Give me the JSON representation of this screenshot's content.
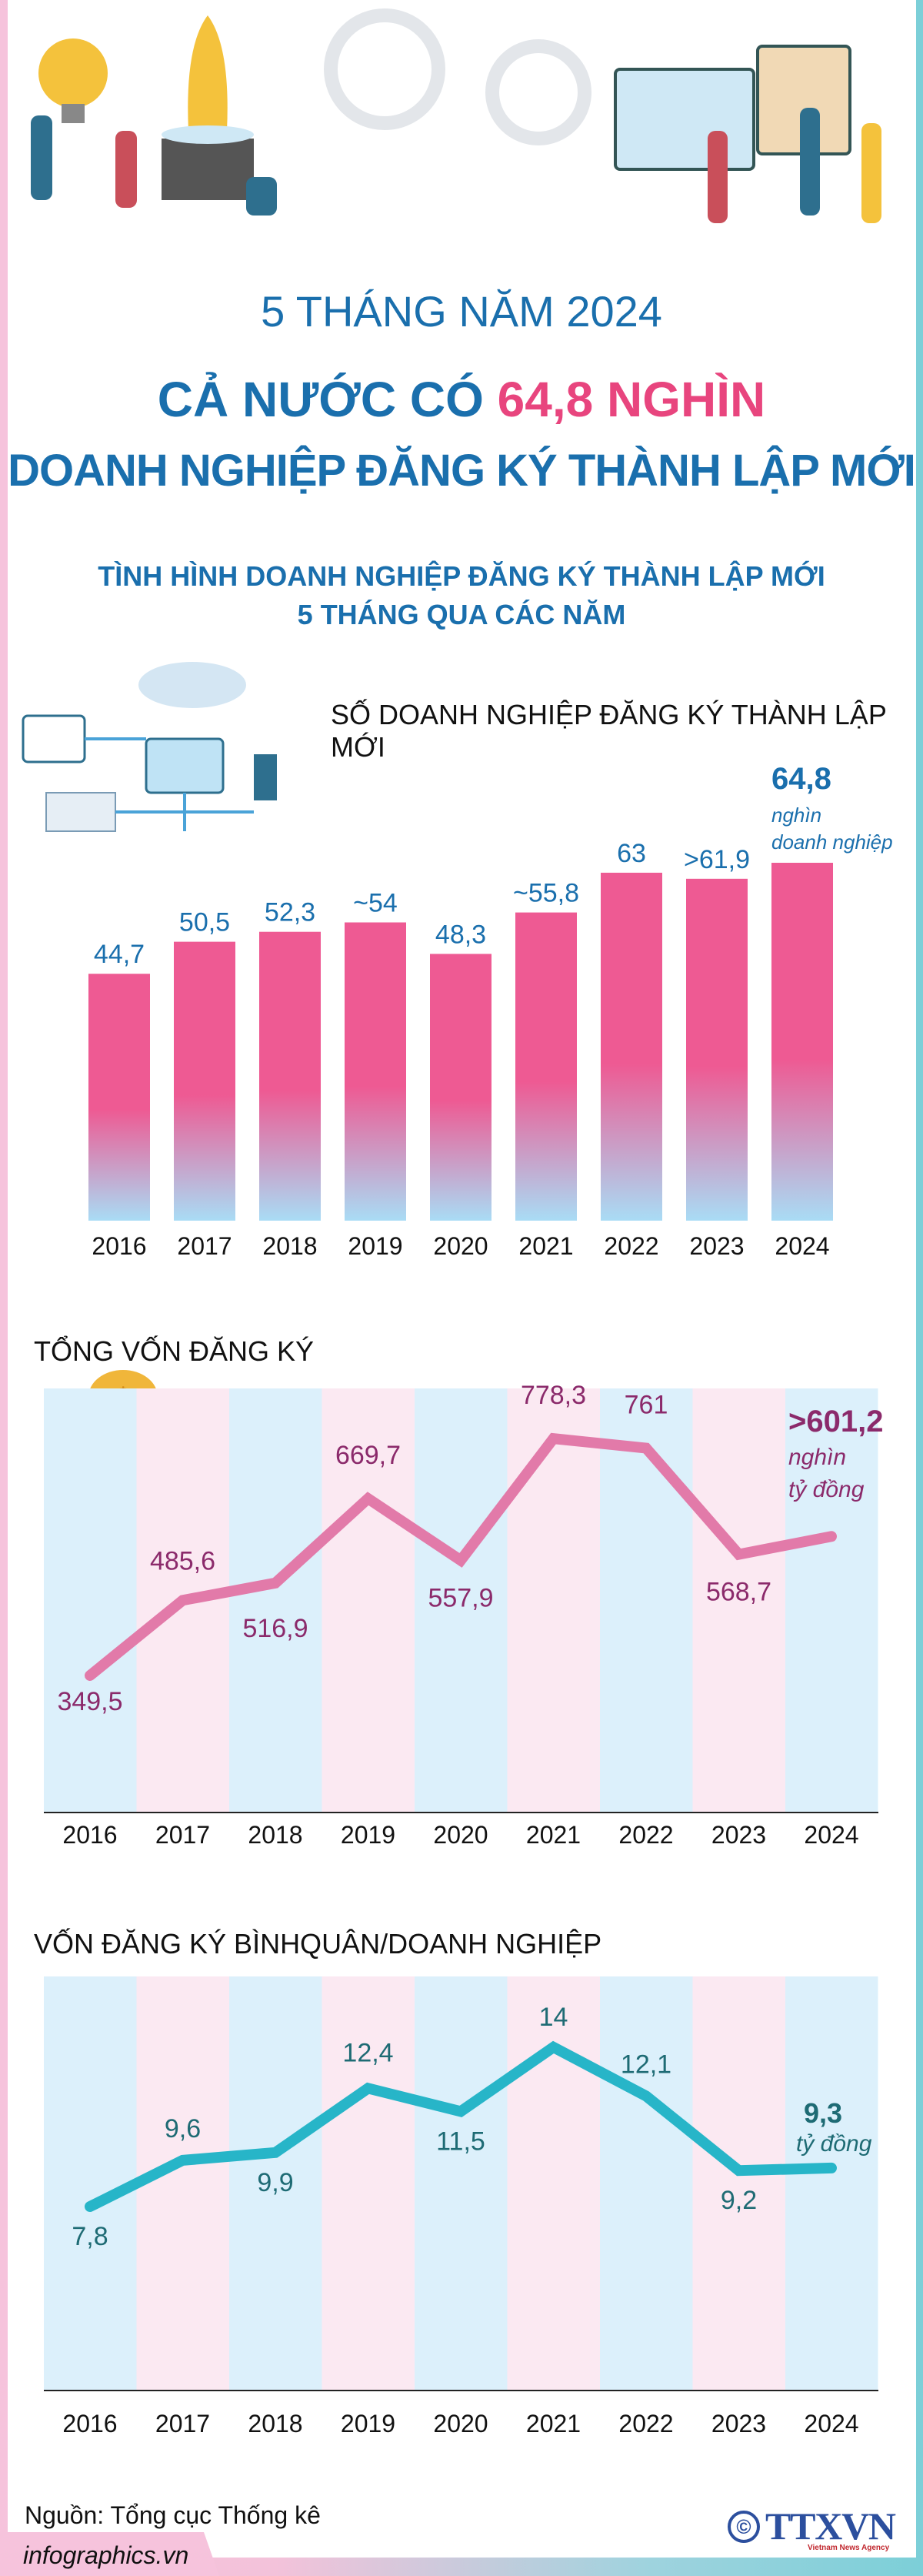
{
  "header": {
    "title_line1": "5 THÁNG NĂM 2024",
    "title_line2_prefix": "CẢ NƯỚC CÓ ",
    "title_line2_highlight": "64,8 NGHÌN",
    "title_line3": "DOANH NGHIỆP ĐĂNG KÝ THÀNH LẬP MỚI",
    "subtitle_line1": "TÌNH HÌNH DOANH NGHIỆP ĐĂNG KÝ THÀNH LẬP MỚI",
    "subtitle_line2": "5 THÁNG QUA CÁC NĂM"
  },
  "colors": {
    "title_blue": "#1a6fad",
    "highlight_pink": "#e8457e",
    "bar_top": "#ee5a93",
    "bar_bottom": "#a9dcf5",
    "line1": "#e27aa9",
    "line1_labels": "#8b2a6b",
    "line2": "#27b5c8",
    "line2_labels": "#1e6b74",
    "col_blue": "#dcf0fb",
    "col_pink": "#fbe9f2"
  },
  "chart_data": [
    {
      "type": "bar",
      "title": "SỐ DOANH NGHIỆP ĐĂNG KÝ THÀNH LẬP MỚI",
      "categories": [
        "2016",
        "2017",
        "2018",
        "2019",
        "2020",
        "2021",
        "2022",
        "2023",
        "2024"
      ],
      "values": [
        44.7,
        50.5,
        52.3,
        54,
        48.3,
        55.8,
        63,
        61.9,
        64.8
      ],
      "labels": [
        "44,7",
        "50,5",
        "52,3",
        "~54",
        "48,3",
        "~55,8",
        "63",
        ">61,9",
        "64,8"
      ],
      "unit_line1": "nghìn",
      "unit_line2": "doanh nghiệp",
      "ylim": [
        0,
        70
      ]
    },
    {
      "type": "line",
      "title": "TỔNG VỐN ĐĂNG KÝ",
      "categories": [
        "2016",
        "2017",
        "2018",
        "2019",
        "2020",
        "2021",
        "2022",
        "2023",
        "2024"
      ],
      "values": [
        349.5,
        485.6,
        516.9,
        669.7,
        557.9,
        778.3,
        761,
        568.7,
        601.2
      ],
      "labels": [
        "349,5",
        "485,6",
        "516,9",
        "669,7",
        "557,9",
        "778,3",
        "761",
        "568,7",
        ">601,2"
      ],
      "unit_line1": "nghìn",
      "unit_line2": "tỷ đồng"
    },
    {
      "type": "line",
      "title": "VỐN ĐĂNG KÝ BÌNHQUÂN/DOANH NGHIỆP",
      "categories": [
        "2016",
        "2017",
        "2018",
        "2019",
        "2020",
        "2021",
        "2022",
        "2023",
        "2024"
      ],
      "values": [
        7.8,
        9.6,
        9.9,
        12.4,
        11.5,
        14,
        12.1,
        9.2,
        9.3
      ],
      "labels": [
        "7,8",
        "9,6",
        "9,9",
        "12,4",
        "11,5",
        "14",
        "12,1",
        "9,2",
        "9,3"
      ],
      "unit_line1": "tỷ đồng"
    }
  ],
  "footer": {
    "source": "Nguồn: Tổng cục Thống kê",
    "site": "infographics.vn",
    "logo_text": "TTXVN",
    "logo_subtext": "Vietnam News Agency",
    "copyright_symbol": "©"
  }
}
